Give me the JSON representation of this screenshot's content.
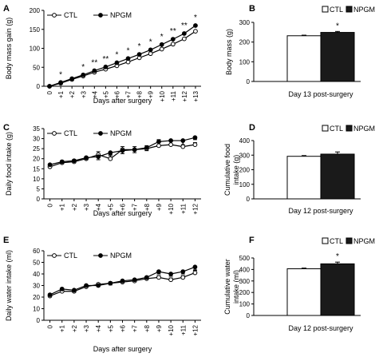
{
  "chart_data": [
    {
      "id": "A",
      "type": "line",
      "panel_letter": "A",
      "x": [
        "0",
        "+1",
        "+2",
        "+3",
        "+4",
        "+5",
        "+6",
        "+7",
        "+8",
        "+9",
        "+10",
        "+11",
        "+12",
        "+13"
      ],
      "series": [
        {
          "name": "CTL",
          "values": [
            0,
            8,
            18,
            27,
            37,
            45,
            54,
            64,
            75,
            86,
            98,
            111,
            125,
            145
          ],
          "marker": "open"
        },
        {
          "name": "NPGM",
          "values": [
            0,
            10,
            20,
            30,
            41,
            51,
            62,
            73,
            84,
            96,
            110,
            124,
            139,
            160
          ],
          "marker": "filled"
        }
      ],
      "annotations": [
        {
          "x": "+1",
          "text": "*"
        },
        {
          "x": "+3",
          "text": "*"
        },
        {
          "x": "+4",
          "text": "**"
        },
        {
          "x": "+5",
          "text": "**"
        },
        {
          "x": "+6",
          "text": "*"
        },
        {
          "x": "+7",
          "text": "*"
        },
        {
          "x": "+8",
          "text": "*"
        },
        {
          "x": "+9",
          "text": "*"
        },
        {
          "x": "+10",
          "text": "*"
        },
        {
          "x": "+11",
          "text": "**"
        },
        {
          "x": "+12",
          "text": "**"
        },
        {
          "x": "+13",
          "text": "*"
        }
      ],
      "xlabel": "Days after surgery",
      "ylabel": "Body mass gain (g)",
      "ylim": [
        0,
        200
      ],
      "yticks": [
        0,
        50,
        100,
        150,
        200
      ],
      "legend": "top-left"
    },
    {
      "id": "B",
      "type": "bar",
      "panel_letter": "B",
      "categories": [
        "CTL",
        "NPGM"
      ],
      "values": [
        232,
        249
      ],
      "errors": [
        3,
        5
      ],
      "annotations": [
        {
          "category": "NPGM",
          "text": "*"
        }
      ],
      "xlabel": "Day 13 post-surgery",
      "ylabel": "Body mass (g)",
      "ylim": [
        0,
        300
      ],
      "yticks": [
        0,
        100,
        200,
        300
      ],
      "legend": "top-right"
    },
    {
      "id": "C",
      "type": "line",
      "panel_letter": "C",
      "x": [
        "0",
        "+1",
        "+2",
        "+3",
        "+4",
        "+5",
        "+6",
        "+7",
        "+8",
        "+9",
        "+10",
        "+11",
        "+12"
      ],
      "series": [
        {
          "name": "CTL",
          "values": [
            16,
            18,
            18.5,
            20,
            22,
            20,
            24.5,
            24.5,
            25,
            26.5,
            27,
            26,
            27
          ],
          "errors": [
            1,
            1,
            1,
            1,
            1.5,
            2,
            1.5,
            1.5,
            1.5,
            3,
            2,
            3,
            1
          ],
          "marker": "open"
        },
        {
          "name": "NPGM",
          "values": [
            17,
            18.5,
            19,
            20.5,
            21,
            23,
            24,
            24.5,
            25.5,
            28.5,
            29,
            29,
            30.5
          ],
          "errors": [
            1,
            1,
            1,
            1,
            1.5,
            1.5,
            1.5,
            1.5,
            1.5,
            2,
            2,
            2,
            1
          ],
          "marker": "filled"
        }
      ],
      "xlabel": "Days after surgery",
      "ylabel": "Daily food intake (g)",
      "ylim": [
        0,
        35
      ],
      "yticks": [
        0,
        5,
        10,
        15,
        20,
        25,
        30,
        35
      ],
      "legend": "top-left"
    },
    {
      "id": "D",
      "type": "bar",
      "panel_letter": "D",
      "categories": [
        "CTL",
        "NPGM"
      ],
      "values": [
        292,
        307
      ],
      "errors": [
        5,
        15
      ],
      "xlabel": "Day 12 post-surgery",
      "ylabel": "Cumulative food intake (g)",
      "ylim": [
        0,
        400
      ],
      "yticks": [
        0,
        100,
        200,
        300,
        400
      ],
      "legend": "top-right"
    },
    {
      "id": "E",
      "type": "line",
      "panel_letter": "E",
      "x": [
        "0",
        "+1",
        "+2",
        "+3",
        "+4",
        "+5",
        "+6",
        "+7",
        "+8",
        "+9",
        "+10",
        "+11",
        "+12"
      ],
      "series": [
        {
          "name": "CTL",
          "values": [
            21,
            25,
            25,
            29,
            31,
            32,
            33,
            34,
            36,
            37,
            35,
            37,
            41
          ],
          "errors": [
            1,
            1,
            1,
            1,
            1,
            1,
            1.5,
            1.5,
            1.5,
            1.5,
            1.5,
            1.5,
            2
          ],
          "marker": "open"
        },
        {
          "name": "NPGM",
          "values": [
            22,
            27,
            26,
            30,
            30,
            32,
            34,
            35,
            37,
            42,
            40,
            42,
            46
          ],
          "errors": [
            1,
            1,
            1,
            1,
            1,
            1.5,
            1.5,
            1.5,
            1.5,
            2,
            2,
            2,
            2.5
          ],
          "marker": "filled"
        }
      ],
      "xlabel": "Days after surgery",
      "ylabel": "Daily water intake (ml)",
      "ylim": [
        0,
        60
      ],
      "yticks": [
        0,
        10,
        20,
        30,
        40,
        50,
        60
      ],
      "legend": "top-left"
    },
    {
      "id": "F",
      "type": "bar",
      "panel_letter": "F",
      "categories": [
        "CTL",
        "NPGM"
      ],
      "values": [
        406,
        449
      ],
      "errors": [
        6,
        15
      ],
      "annotations": [
        {
          "category": "NPGM",
          "text": "*"
        }
      ],
      "xlabel": "Day 12 post-surgery",
      "ylabel": "Cumulative water intake (ml)",
      "ylim": [
        0,
        500
      ],
      "yticks": [
        0,
        100,
        200,
        300,
        400,
        500
      ],
      "legend": "top-right"
    }
  ]
}
